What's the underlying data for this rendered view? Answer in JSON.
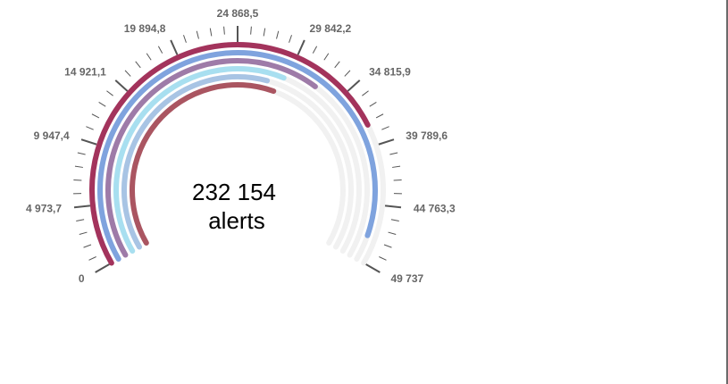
{
  "chart_data": {
    "type": "radial-bar-gauge",
    "center_value": "232 154",
    "center_unit": "alerts",
    "scale": {
      "min": 0,
      "max": 49737
    },
    "major_tick_labels": [
      "0",
      "4 973,7",
      "9 947,4",
      "14 921,1",
      "19 894,8",
      "24 868,5",
      "29 842,2",
      "34 815,9",
      "39 789,6",
      "44 763,3",
      "49 737"
    ],
    "minor_ticks_per_interval": 4,
    "series": [
      {
        "value": 38000,
        "color": "#a3335c"
      },
      {
        "value": 47500,
        "color": "#7fa3de"
      },
      {
        "value": 32500,
        "color": "#9e7ba8"
      },
      {
        "value": 29500,
        "color": "#a8dff0"
      },
      {
        "value": 28000,
        "color": "#a8c4e4"
      },
      {
        "value": 29000,
        "color": "#aa5561"
      }
    ],
    "track_color": "#f1f1f1",
    "tick_color": "#555555"
  }
}
